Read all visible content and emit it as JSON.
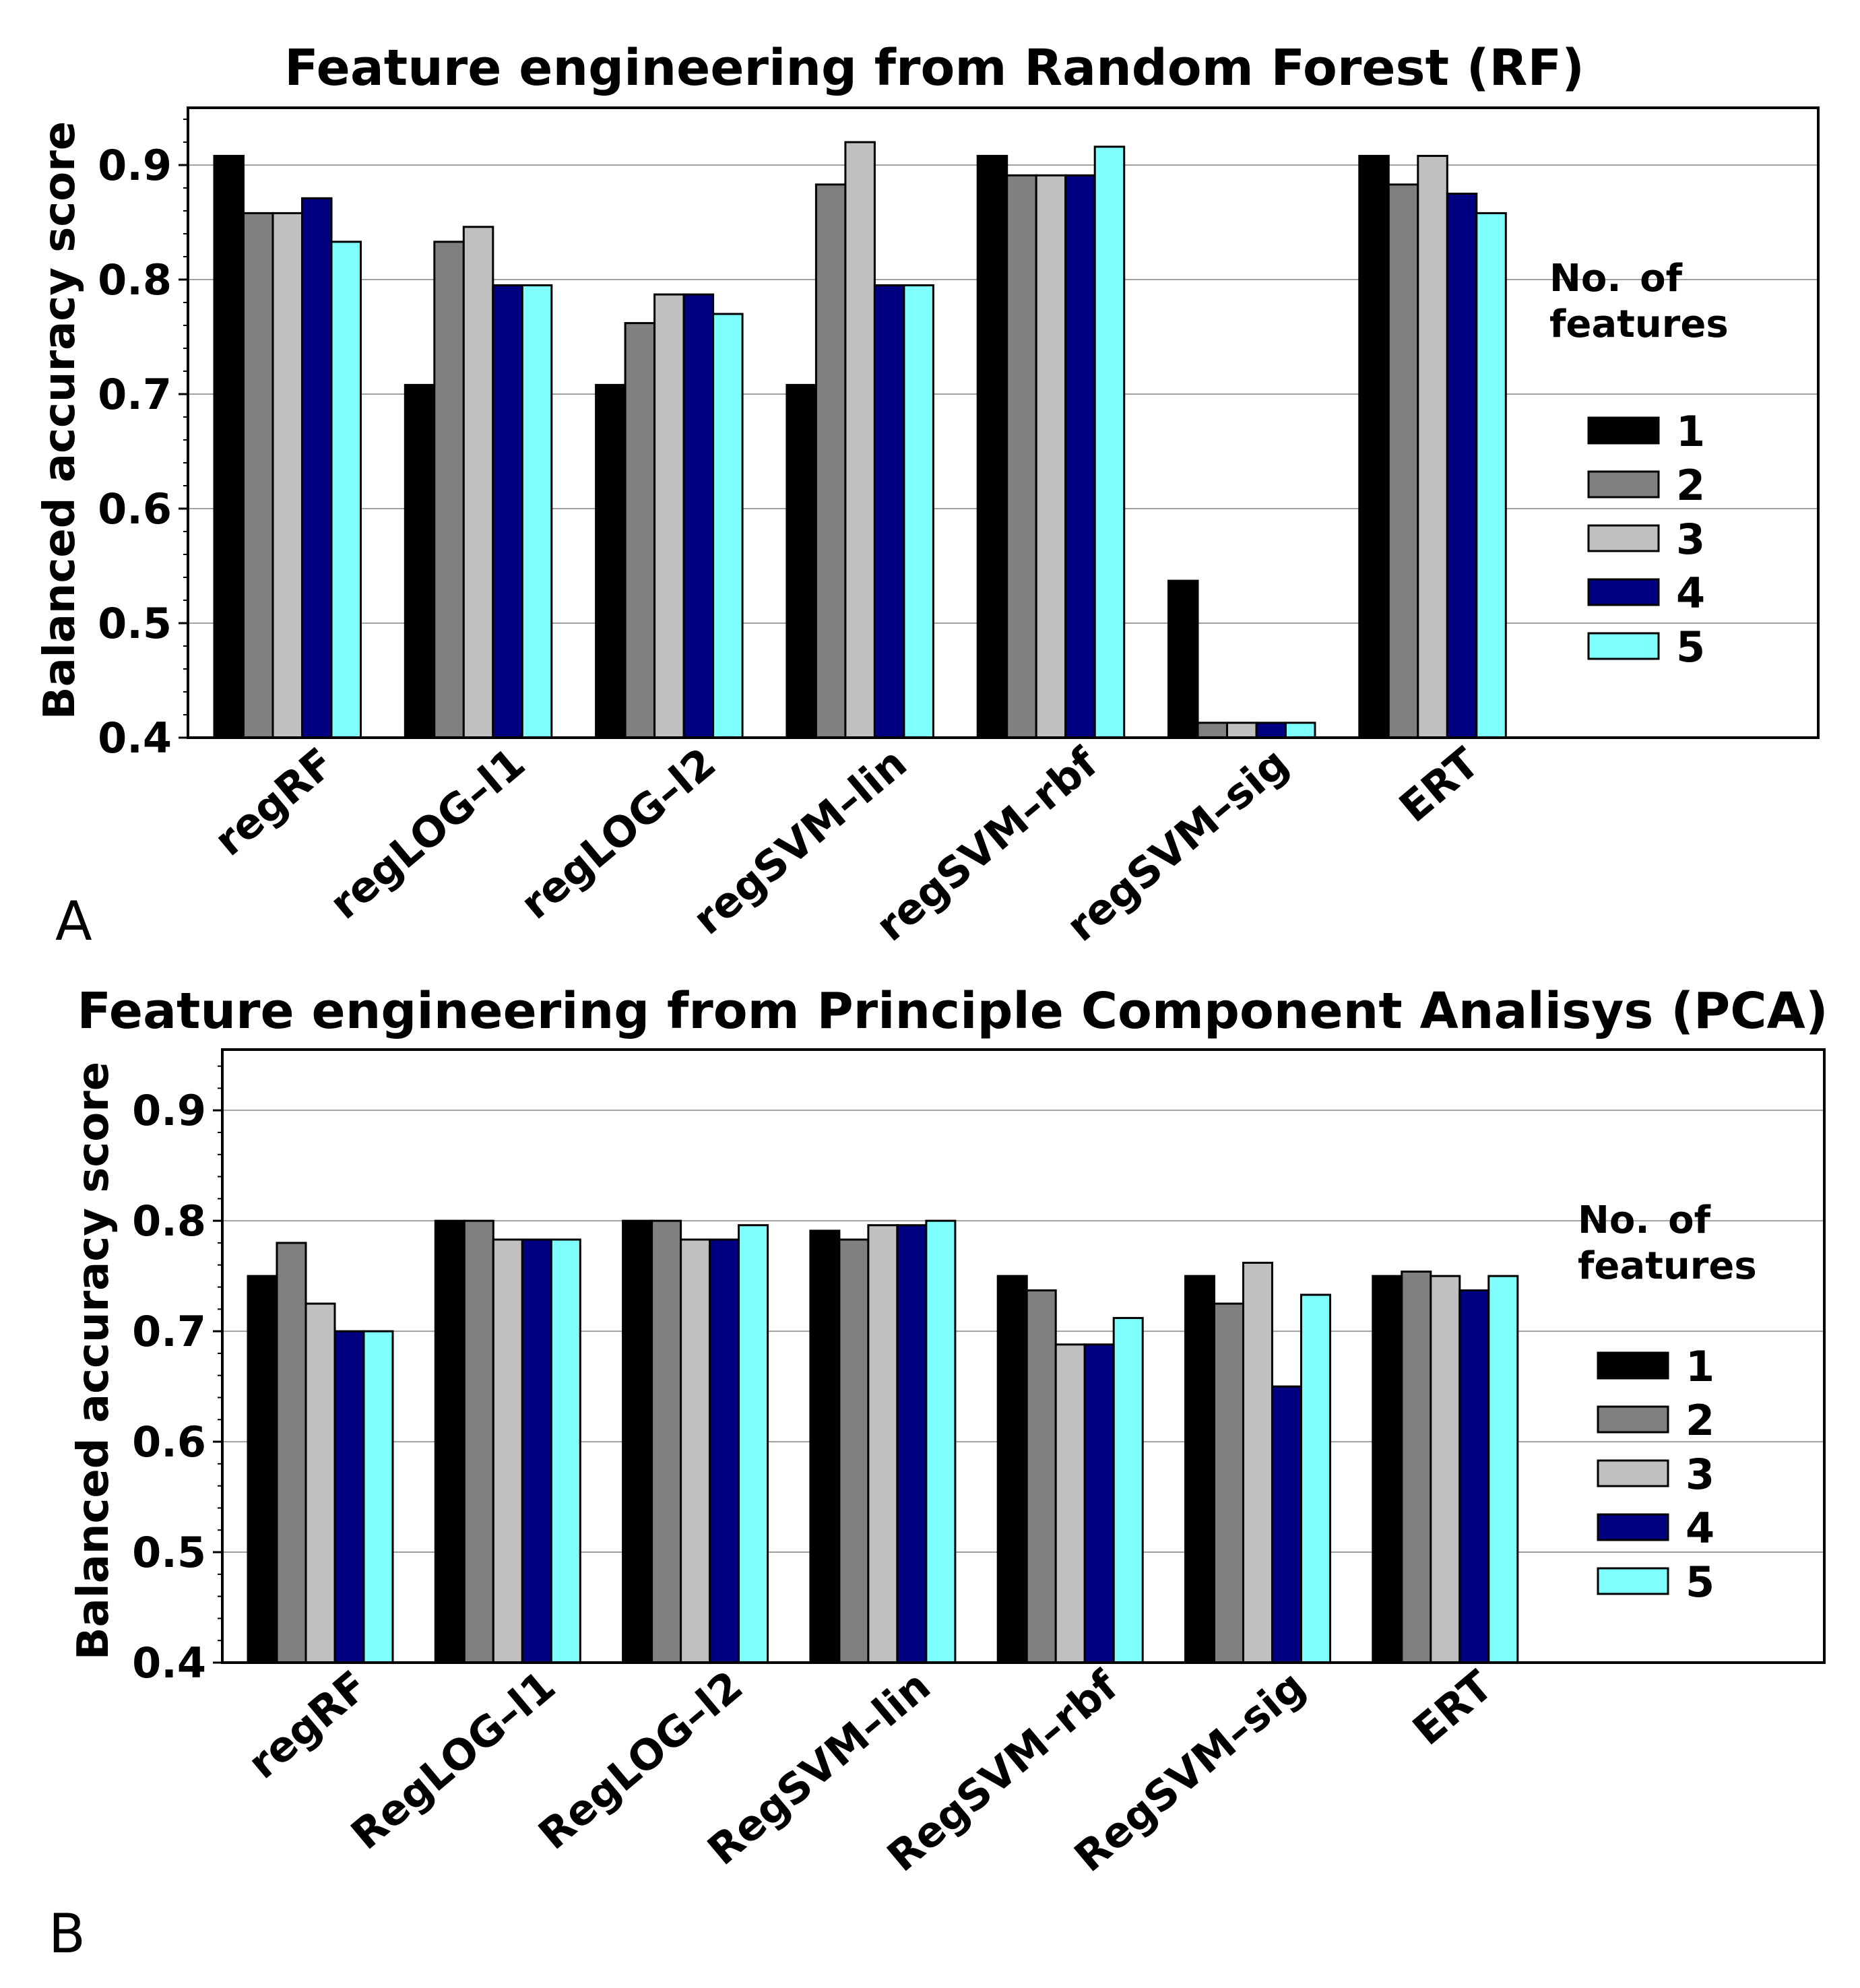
{
  "chart_data": [
    {
      "panel": "A",
      "type": "bar",
      "title": "Feature engineering from Random Forest (RF)",
      "xlabel": "",
      "ylabel": "Balanced accuracy score",
      "ylim": [
        0.4,
        0.95
      ],
      "yticks": [
        "0.4",
        "0.5",
        "0.6",
        "0.7",
        "0.8",
        "0.9"
      ],
      "grid": true,
      "legend_title": "No. of features",
      "legend_position": "right",
      "categories": [
        "regRF",
        "regLOG–l1",
        "regLOG–l2",
        "regSVM–lin",
        "regSVM–rbf",
        "regSVM–sig",
        "ERT"
      ],
      "series": [
        {
          "name": "1",
          "values": [
            0.908,
            0.708,
            0.708,
            0.708,
            0.908,
            0.537,
            0.908
          ]
        },
        {
          "name": "2",
          "values": [
            0.858,
            0.833,
            0.762,
            0.883,
            0.891,
            0.413,
            0.883
          ]
        },
        {
          "name": "3",
          "values": [
            0.858,
            0.846,
            0.787,
            0.92,
            0.891,
            0.413,
            0.908
          ]
        },
        {
          "name": "4",
          "values": [
            0.871,
            0.795,
            0.787,
            0.795,
            0.891,
            0.413,
            0.875
          ]
        },
        {
          "name": "5",
          "values": [
            0.833,
            0.795,
            0.77,
            0.795,
            0.916,
            0.413,
            0.858
          ]
        }
      ]
    },
    {
      "panel": "B",
      "type": "bar",
      "title": "Feature engineering from Principle Component Analisys (PCA)",
      "xlabel": "",
      "ylabel": "Balanced accuracy score",
      "ylim": [
        0.4,
        0.955
      ],
      "yticks": [
        "0.4",
        "0.5",
        "0.6",
        "0.7",
        "0.8",
        "0.9"
      ],
      "grid": true,
      "legend_title": "No. of features",
      "legend_position": "right",
      "categories": [
        "regRF",
        "RegLOG–l1",
        "RegLOG–l2",
        "RegSVM–lin",
        "RegSVM–rbf",
        "RegSVM–sig",
        "ERT"
      ],
      "series": [
        {
          "name": "1",
          "values": [
            0.75,
            0.8,
            0.8,
            0.791,
            0.75,
            0.75,
            0.75
          ]
        },
        {
          "name": "2",
          "values": [
            0.78,
            0.8,
            0.8,
            0.783,
            0.737,
            0.725,
            0.754
          ]
        },
        {
          "name": "3",
          "values": [
            0.725,
            0.783,
            0.783,
            0.796,
            0.688,
            0.762,
            0.75
          ]
        },
        {
          "name": "4",
          "values": [
            0.7,
            0.783,
            0.783,
            0.796,
            0.688,
            0.65,
            0.737
          ]
        },
        {
          "name": "5",
          "values": [
            0.7,
            0.783,
            0.796,
            0.8,
            0.712,
            0.733,
            0.75
          ]
        }
      ]
    }
  ],
  "series_colors": [
    "#000000",
    "#808080",
    "#c0c0c0",
    "#000080",
    "#80ffff"
  ],
  "legend_labels": [
    "No.",
    "of",
    "features"
  ]
}
